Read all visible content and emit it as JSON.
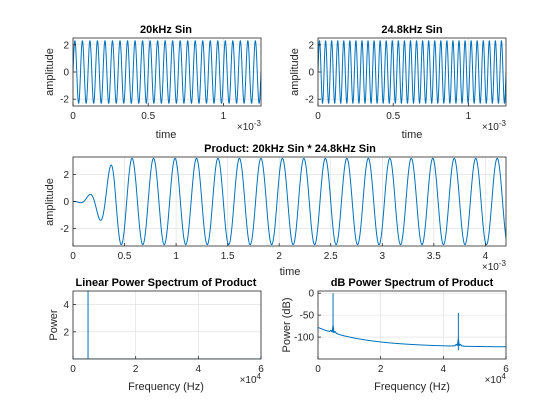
{
  "chart_data": [
    {
      "type": "line",
      "title": "20kHz Sin",
      "xlabel": "time",
      "ylabel": "amplitude",
      "xlim": [
        0,
        0.00125
      ],
      "ylim": [
        -2.5,
        2.5
      ],
      "x_ticks": [
        0,
        0.0005,
        0.001
      ],
      "x_tick_labels": [
        "0",
        "0.5",
        "1"
      ],
      "x_exponent": "×10^-3",
      "y_ticks": [
        -2,
        0,
        2
      ],
      "y_tick_labels": [
        "-2",
        "0",
        "2"
      ],
      "grid": true,
      "series": [
        {
          "kind": "sine",
          "amplitude": 2.3,
          "frequency_hz": 20000,
          "t_start": 0,
          "t_end": 0.00125
        }
      ]
    },
    {
      "type": "line",
      "title": "24.8kHz Sin",
      "xlabel": "time",
      "ylabel": "amplitude",
      "xlim": [
        0,
        0.00125
      ],
      "ylim": [
        -2.5,
        2.5
      ],
      "x_ticks": [
        0,
        0.0005,
        0.001
      ],
      "x_tick_labels": [
        "0",
        "0.5",
        "1"
      ],
      "x_exponent": "×10^-3",
      "y_ticks": [
        -2,
        0,
        2
      ],
      "y_tick_labels": [
        "-2",
        "0",
        "2"
      ],
      "grid": true,
      "series": [
        {
          "kind": "sine",
          "amplitude": 2.3,
          "frequency_hz": 24800,
          "t_start": 0,
          "t_end": 0.00125
        }
      ]
    },
    {
      "type": "line",
      "title": "Product: 20kHz Sin * 24.8kHz Sin",
      "xlabel": "time",
      "ylabel": "amplitude",
      "xlim": [
        0,
        0.0042
      ],
      "ylim": [
        -3.3,
        3.3
      ],
      "x_ticks": [
        0,
        0.0005,
        0.001,
        0.0015,
        0.002,
        0.0025,
        0.003,
        0.0035,
        0.004
      ],
      "x_tick_labels": [
        "0",
        "0.5",
        "1",
        "1.5",
        "2",
        "2.5",
        "3",
        "3.5",
        "4"
      ],
      "x_exponent": "×10^-3",
      "y_ticks": [
        -2,
        0,
        2
      ],
      "y_tick_labels": [
        "-2",
        "0",
        "2"
      ],
      "grid": true,
      "series": [
        {
          "kind": "product_wave",
          "amplitude": 3.2,
          "frequency_hz": 4800,
          "onset_s": 0.0004,
          "t_start": 0,
          "t_end": 0.0042
        }
      ]
    },
    {
      "type": "line",
      "title": "Linear Power Spectrum of Product",
      "xlabel": "Frequency (Hz)",
      "ylabel": "Power",
      "xlim": [
        0,
        60000
      ],
      "ylim": [
        0,
        5
      ],
      "x_ticks": [
        0,
        20000,
        40000,
        60000
      ],
      "x_tick_labels": [
        "0",
        "2",
        "4",
        "6"
      ],
      "x_exponent": "×10^4",
      "y_ticks": [
        2,
        4
      ],
      "y_tick_labels": [
        "2",
        "4"
      ],
      "grid": true,
      "series": [
        {
          "kind": "spikes",
          "baseline": 0,
          "peaks": [
            {
              "x": 4800,
              "y": 5
            }
          ]
        }
      ]
    },
    {
      "type": "line",
      "title": "dB Power Spectrum of Product",
      "xlabel": "Frequency (Hz)",
      "ylabel": "Power (dB)",
      "xlim": [
        0,
        60000
      ],
      "ylim": [
        -150,
        5
      ],
      "x_ticks": [
        0,
        20000,
        40000,
        60000
      ],
      "x_tick_labels": [
        "0",
        "2",
        "4",
        "6"
      ],
      "x_exponent": "×10^4",
      "y_ticks": [
        -100,
        -50,
        0
      ],
      "y_tick_labels": [
        "-100",
        "-50",
        "0"
      ],
      "grid": true,
      "series": [
        {
          "kind": "db_spectrum",
          "start_db": -78,
          "floor_db": -123,
          "peaks": [
            {
              "x": 4800,
              "y": 0,
              "notch_y": -80
            },
            {
              "x": 44800,
              "y": -45,
              "notch_y": -130
            }
          ]
        }
      ]
    }
  ]
}
